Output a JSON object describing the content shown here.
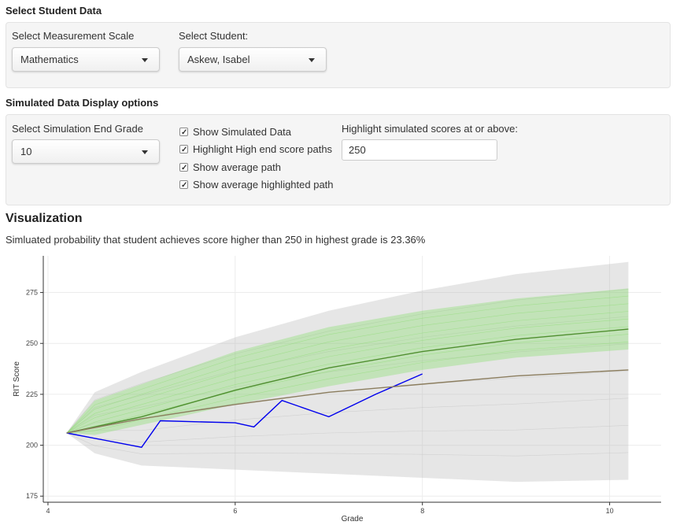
{
  "student_section": {
    "title": "Select Student Data",
    "scale_label": "Select Measurement Scale",
    "scale_value": "Mathematics",
    "student_label": "Select Student:",
    "student_value": "Askew, Isabel"
  },
  "display_section": {
    "title": "Simulated Data Display options",
    "end_grade_label": "Select Simulation End Grade",
    "end_grade_value": "10",
    "checkboxes": [
      {
        "label": "Show Simulated Data",
        "checked": true
      },
      {
        "label": "Highlight High end score paths",
        "checked": true
      },
      {
        "label": "Show average path",
        "checked": true
      },
      {
        "label": "Show average highlighted path",
        "checked": true
      }
    ],
    "threshold_label": "Highlight simulated scores at or above:",
    "threshold_value": "250"
  },
  "visualization": {
    "title": "Visualization",
    "probability_text": "Simluated probability that student achieves score higher than 250 in highest grade is 23.36%"
  },
  "chart_data": {
    "type": "line",
    "xlabel": "Grade",
    "ylabel": "RIT Score",
    "xlim": [
      3.95,
      10.55
    ],
    "ylim": [
      172,
      293
    ],
    "x_ticks": [
      4,
      6,
      8,
      10
    ],
    "y_ticks": [
      175,
      200,
      225,
      250,
      275
    ],
    "grid": true,
    "series": [
      {
        "color": "#0000ee",
        "x": [
          4.2,
          5.0,
          5.2,
          6.0,
          6.2,
          6.5,
          7.0,
          7.5,
          8.0
        ],
        "y": [
          206,
          199,
          212,
          211,
          209,
          222,
          214,
          225,
          235
        ]
      },
      {
        "color": "#4f8f2f",
        "x": [
          4.2,
          5.0,
          6.0,
          7.0,
          8.0,
          9.0,
          10.2
        ],
        "y": [
          206,
          214,
          227,
          238,
          246,
          252,
          257
        ]
      },
      {
        "color": "#8b7d5e",
        "x": [
          4.2,
          5.0,
          6.0,
          7.0,
          8.0,
          9.0,
          10.2
        ],
        "y": [
          206,
          213,
          220,
          226,
          230,
          234,
          237
        ]
      }
    ],
    "bands": [
      {
        "color": "#b8b8b8",
        "x": [
          4.2,
          4.5,
          5.0,
          6.0,
          7.0,
          8.0,
          9.0,
          10.2
        ],
        "lower": [
          206,
          196,
          190,
          188,
          186,
          184,
          182,
          183
        ],
        "upper": [
          206,
          226,
          236,
          253,
          266,
          276,
          284,
          290
        ]
      },
      {
        "color": "#7fdc60",
        "x": [
          4.2,
          4.5,
          5.0,
          6.0,
          7.0,
          8.0,
          9.0,
          10.2
        ],
        "lower": [
          206,
          205,
          210,
          220,
          229,
          237,
          243,
          247
        ],
        "upper": [
          206,
          222,
          230,
          246,
          258,
          266,
          272,
          277
        ]
      }
    ]
  }
}
